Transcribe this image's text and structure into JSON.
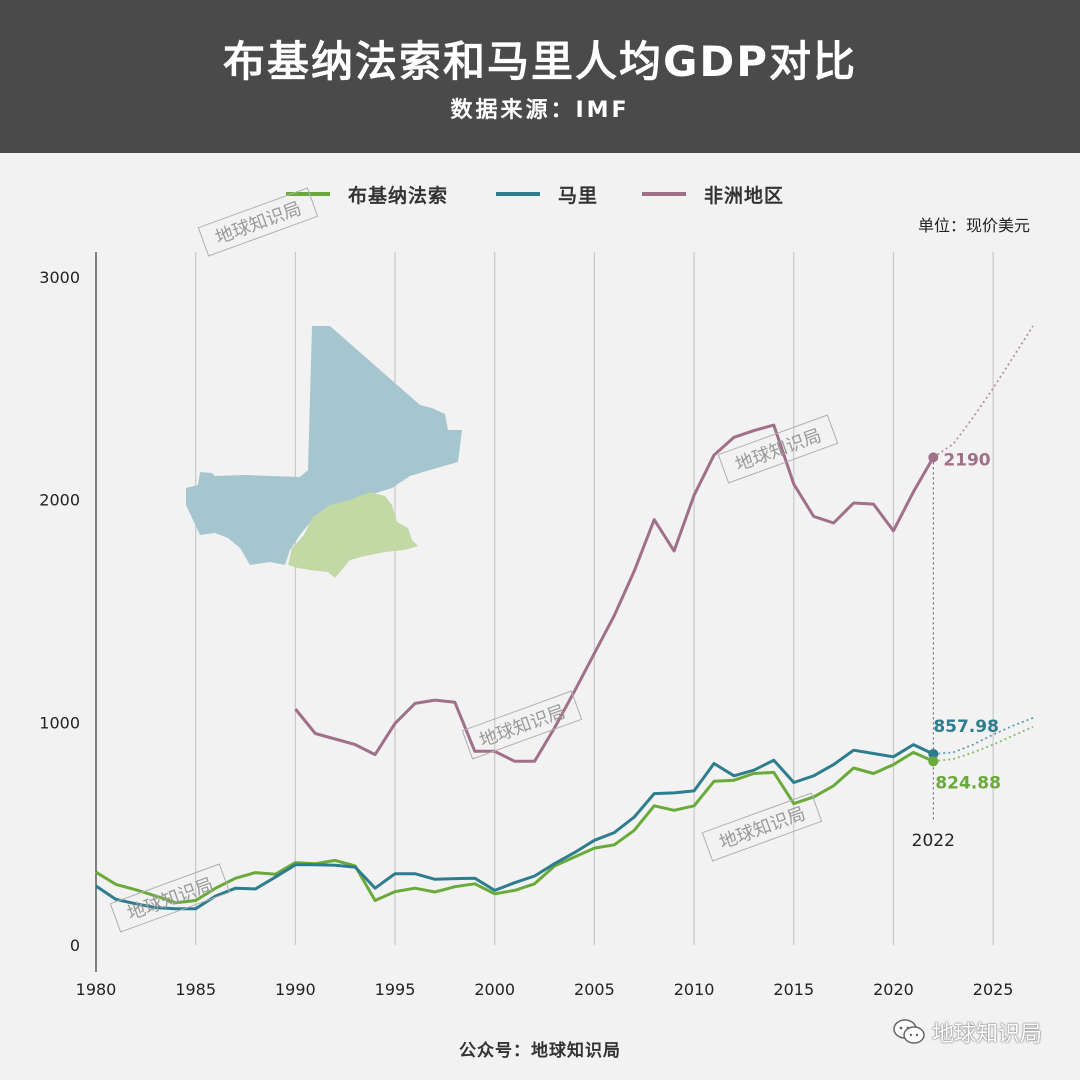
{
  "header": {
    "title": "布基纳法索和马里人均GDP对比",
    "subtitle": "数据来源：IMF"
  },
  "unit_label": "单位：现价美元",
  "footer": {
    "source_label": "公众号：地球知识局",
    "wechat_label": "地球知识局"
  },
  "watermark_text": "地球知识局",
  "colors": {
    "burkina": "#6aaa3a",
    "mali": "#2e7d8f",
    "africa": "#a07088",
    "mali_map": "#a6c6cf",
    "burkina_map": "#c2d9a6",
    "header_bg": "#4a4a4a",
    "background": "#f2f2f2"
  },
  "chart_data": {
    "type": "line",
    "ylim": [
      0,
      3000
    ],
    "xlim": [
      1980,
      2027
    ],
    "yticks": [
      "0",
      "1000",
      "2000",
      "3000"
    ],
    "xticks": [
      "1980",
      "1985",
      "1990",
      "1995",
      "2000",
      "2005",
      "2010",
      "2015",
      "2020",
      "2025"
    ],
    "grid": "vertical",
    "legend_position": "top",
    "forecast_from": 2022,
    "series": [
      {
        "name": "布基纳法索",
        "color_key": "burkina",
        "x": [
          1980,
          1981,
          1982,
          1983,
          1984,
          1985,
          1986,
          1987,
          1988,
          1989,
          1990,
          1991,
          1992,
          1993,
          1994,
          1995,
          1996,
          1997,
          1998,
          1999,
          2000,
          2001,
          2002,
          2003,
          2004,
          2005,
          2006,
          2007,
          2008,
          2009,
          2010,
          2011,
          2012,
          2013,
          2014,
          2015,
          2016,
          2017,
          2018,
          2019,
          2020,
          2021,
          2022,
          2023,
          2024,
          2025,
          2026,
          2027
        ],
        "values": [
          327,
          272,
          248,
          220,
          190,
          200,
          255,
          300,
          325,
          318,
          370,
          365,
          380,
          355,
          200,
          240,
          255,
          238,
          262,
          275,
          230,
          245,
          275,
          355,
          395,
          435,
          450,
          515,
          625,
          605,
          625,
          735,
          740,
          770,
          775,
          635,
          665,
          715,
          795,
          770,
          810,
          865,
          825,
          835,
          865,
          900,
          940,
          980
        ]
      },
      {
        "name": "马里",
        "color_key": "mali",
        "x": [
          1980,
          1981,
          1982,
          1983,
          1984,
          1985,
          1986,
          1987,
          1988,
          1989,
          1990,
          1991,
          1992,
          1993,
          1994,
          1995,
          1996,
          1997,
          1998,
          1999,
          2000,
          2001,
          2002,
          2003,
          2004,
          2005,
          2006,
          2007,
          2008,
          2009,
          2010,
          2011,
          2012,
          2013,
          2014,
          2015,
          2016,
          2017,
          2018,
          2019,
          2020,
          2021,
          2022,
          2023,
          2024,
          2025,
          2026,
          2027
        ],
        "values": [
          265,
          205,
          185,
          168,
          163,
          163,
          220,
          255,
          252,
          305,
          360,
          360,
          358,
          350,
          255,
          320,
          320,
          295,
          298,
          300,
          245,
          280,
          310,
          365,
          415,
          470,
          505,
          575,
          680,
          683,
          692,
          815,
          760,
          785,
          830,
          730,
          760,
          810,
          875,
          860,
          845,
          900,
          858,
          865,
          900,
          945,
          985,
          1020
        ]
      },
      {
        "name": "非洲地区",
        "color_key": "africa",
        "x": [
          1990,
          1991,
          1992,
          1993,
          1994,
          1995,
          1996,
          1997,
          1998,
          1999,
          2000,
          2001,
          2002,
          2003,
          2004,
          2005,
          2006,
          2007,
          2008,
          2009,
          2010,
          2011,
          2012,
          2013,
          2014,
          2015,
          2016,
          2017,
          2018,
          2019,
          2020,
          2021,
          2022,
          2023,
          2024,
          2025,
          2026,
          2027
        ],
        "values": [
          1060,
          950,
          925,
          900,
          855,
          995,
          1085,
          1100,
          1090,
          870,
          870,
          825,
          825,
          975,
          1140,
          1310,
          1480,
          1680,
          1910,
          1770,
          2020,
          2200,
          2280,
          2310,
          2335,
          2070,
          1925,
          1895,
          1985,
          1980,
          1860,
          2035,
          2190,
          2250,
          2370,
          2500,
          2640,
          2780
        ]
      }
    ],
    "annotations": [
      {
        "series": "非洲地区",
        "x": 2022,
        "label": "2190"
      },
      {
        "series": "马里",
        "x": 2022,
        "label": "857.98"
      },
      {
        "series": "布基纳法索",
        "x": 2022,
        "label": "824.88"
      },
      {
        "x": 2022,
        "label": "2022"
      }
    ]
  }
}
